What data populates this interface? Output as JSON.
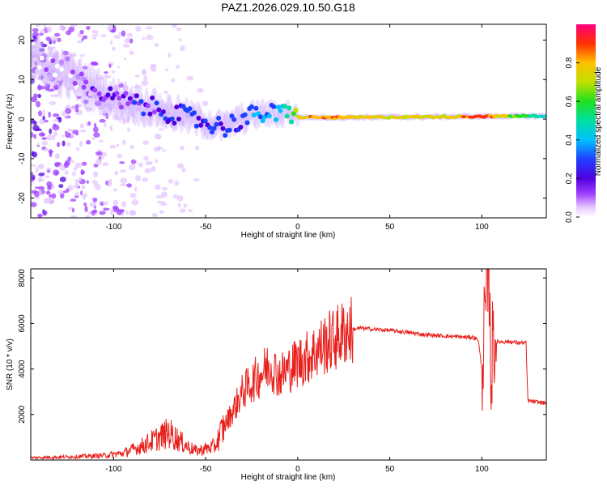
{
  "title": "PAZ1.2026.029.10.50.G18",
  "colors": {
    "snr_line": "#e8201c",
    "frame": "#000000"
  },
  "chart_data": [
    {
      "type": "heatmap",
      "xlabel": "Height of straight line (km)",
      "ylabel": "Frequency (Hz)",
      "xlim": [
        -145,
        135
      ],
      "ylim": [
        -25,
        24
      ],
      "xticks": [
        -100,
        -50,
        0,
        50,
        100
      ],
      "yticks": [
        -20,
        -10,
        0,
        10,
        20
      ],
      "colorbar": {
        "label": "Normalized spectral amplitude",
        "range": [
          0,
          1
        ],
        "ticks": [
          0.0,
          0.2,
          0.4,
          0.6,
          0.8
        ]
      },
      "ridge": {
        "x": [
          -145,
          -120,
          -100,
          -80,
          -60,
          -40,
          -30,
          -20,
          -10,
          -5,
          0,
          20,
          50,
          80,
          100,
          135
        ],
        "freq": [
          15,
          10,
          5,
          3,
          0.5,
          -2,
          0,
          1.5,
          1,
          2,
          0.5,
          0.4,
          0.5,
          0.6,
          0.7,
          0.8
        ],
        "amplitude": [
          0.05,
          0.1,
          0.2,
          0.25,
          0.3,
          0.3,
          0.35,
          0.4,
          0.45,
          0.6,
          0.8,
          0.9,
          0.75,
          0.8,
          0.95,
          0.5
        ]
      }
    },
    {
      "type": "line",
      "xlabel": "Height of straight line (km)",
      "ylabel": "SNR (10 * v/v)",
      "xlim": [
        -145,
        135
      ],
      "ylim": [
        0,
        8400
      ],
      "xticks": [
        -100,
        -50,
        0,
        50,
        100
      ],
      "yticks": [
        2000,
        4000,
        6000,
        8000
      ],
      "series": [
        {
          "name": "SNR",
          "x": [
            -145,
            -120,
            -105,
            -95,
            -85,
            -75,
            -70,
            -65,
            -60,
            -55,
            -45,
            -40,
            -35,
            -30,
            -25,
            -20,
            -15,
            -12,
            -10,
            -5,
            0,
            5,
            10,
            15,
            20,
            25,
            30,
            35,
            40,
            50,
            60,
            70,
            80,
            90,
            95,
            98,
            100,
            102,
            104,
            105,
            106,
            108,
            110,
            115,
            120,
            124,
            125,
            130,
            135
          ],
          "y": [
            100,
            150,
            200,
            300,
            600,
            1000,
            1200,
            900,
            600,
            400,
            600,
            1500,
            2200,
            3000,
            3400,
            3800,
            4200,
            3900,
            3700,
            4000,
            4300,
            4500,
            4800,
            5100,
            5300,
            5600,
            5750,
            5800,
            5750,
            5700,
            5600,
            5500,
            5450,
            5400,
            5400,
            5300,
            4000,
            6500,
            8000,
            3500,
            5300,
            5200,
            5200,
            5200,
            5150,
            5150,
            2600,
            2550,
            2500
          ]
        }
      ]
    }
  ]
}
